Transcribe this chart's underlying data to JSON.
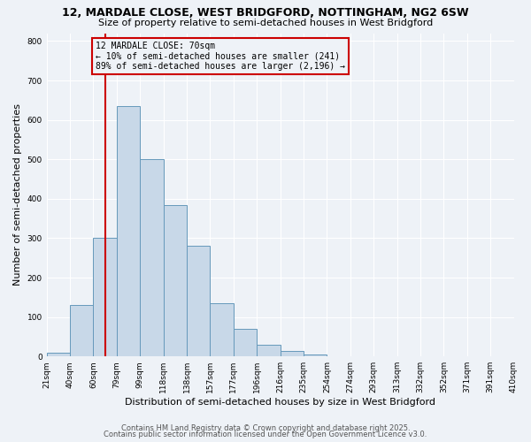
{
  "title": "12, MARDALE CLOSE, WEST BRIDGFORD, NOTTINGHAM, NG2 6SW",
  "subtitle": "Size of property relative to semi-detached houses in West Bridgford",
  "xlabel": "Distribution of semi-detached houses by size in West Bridgford",
  "ylabel": "Number of semi-detached properties",
  "bin_labels": [
    "21sqm",
    "40sqm",
    "60sqm",
    "79sqm",
    "99sqm",
    "118sqm",
    "138sqm",
    "157sqm",
    "177sqm",
    "196sqm",
    "216sqm",
    "235sqm",
    "254sqm",
    "274sqm",
    "293sqm",
    "313sqm",
    "332sqm",
    "352sqm",
    "371sqm",
    "391sqm",
    "410sqm"
  ],
  "bar_values": [
    10,
    130,
    300,
    635,
    500,
    385,
    280,
    135,
    70,
    30,
    15,
    5,
    0,
    0,
    0,
    0,
    0,
    0,
    0,
    0
  ],
  "n_bins": 20,
  "bar_color": "#c8d8e8",
  "bar_edge_color": "#6699bb",
  "vline_color": "#cc0000",
  "vline_bin": 2.5,
  "annotation_title": "12 MARDALE CLOSE: 70sqm",
  "annotation_line1": "← 10% of semi-detached houses are smaller (241)",
  "annotation_line2": "89% of semi-detached houses are larger (2,196) →",
  "annotation_box_color": "#cc0000",
  "ylim": [
    0,
    820
  ],
  "yticks": [
    0,
    100,
    200,
    300,
    400,
    500,
    600,
    700,
    800
  ],
  "bg_color": "#eef2f7",
  "grid_color": "#ffffff",
  "footer1": "Contains HM Land Registry data © Crown copyright and database right 2025.",
  "footer2": "Contains public sector information licensed under the Open Government Licence v3.0.",
  "title_fontsize": 9,
  "subtitle_fontsize": 8,
  "axis_label_fontsize": 8,
  "tick_fontsize": 6.5,
  "annotation_fontsize": 7,
  "footer_fontsize": 6
}
